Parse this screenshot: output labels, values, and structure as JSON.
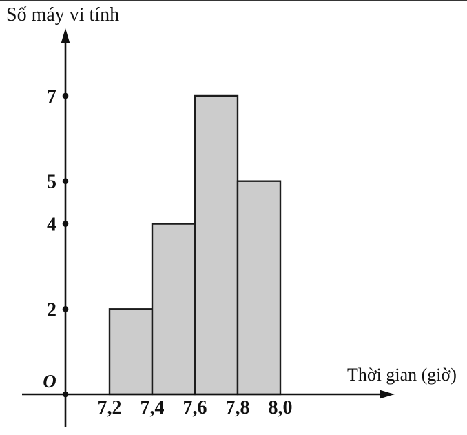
{
  "chart_data": {
    "type": "bar",
    "subtype": "histogram",
    "title": "",
    "xlabel": "Thời gian (giờ)",
    "ylabel": "Số máy vi tính",
    "origin_label": "O",
    "bins": [
      {
        "range": [
          7.2,
          7.4
        ],
        "count": 2
      },
      {
        "range": [
          7.4,
          7.6
        ],
        "count": 4
      },
      {
        "range": [
          7.6,
          7.8
        ],
        "count": 7
      },
      {
        "range": [
          7.8,
          8.0
        ],
        "count": 5
      }
    ],
    "x_ticks": [
      {
        "value": 7.2,
        "label": "7,2"
      },
      {
        "value": 7.4,
        "label": "7,4"
      },
      {
        "value": 7.6,
        "label": "7,6"
      },
      {
        "value": 7.8,
        "label": "7,8"
      },
      {
        "value": 8.0,
        "label": "8,0"
      }
    ],
    "y_ticks": [
      {
        "value": 2,
        "label": "2"
      },
      {
        "value": 4,
        "label": "4"
      },
      {
        "value": 5,
        "label": "5"
      },
      {
        "value": 7,
        "label": "7"
      }
    ],
    "xlim": [
      7.2,
      8.0
    ],
    "ylim": [
      0,
      7
    ],
    "grid": false,
    "legend": null,
    "colors": {
      "bar_fill": "#cccccc",
      "bar_stroke": "#1c1c1c",
      "axis": "#111111",
      "text": "#111111",
      "background": "#ffffff"
    }
  }
}
